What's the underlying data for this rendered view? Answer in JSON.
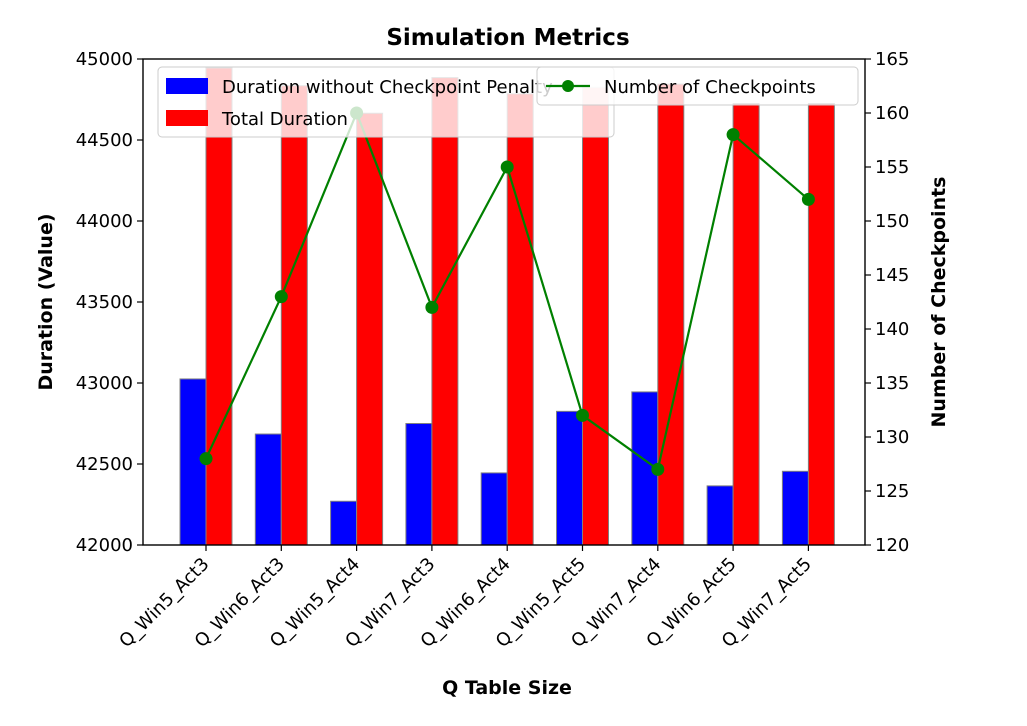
{
  "chart_data": {
    "type": "bar",
    "title": "Simulation Metrics",
    "xlabel": "Q Table Size",
    "ylabel_left": "Duration (Value)",
    "ylabel_right": "Number of Checkpoints",
    "categories": [
      "Q_Win5_Act3",
      "Q_Win6_Act3",
      "Q_Win5_Act4",
      "Q_Win7_Act3",
      "Q_Win6_Act4",
      "Q_Win5_Act5",
      "Q_Win7_Act4",
      "Q_Win6_Act5",
      "Q_Win7_Act5"
    ],
    "series": [
      {
        "name": "Duration without Checkpoint Penalty",
        "axis": "left",
        "kind": "bar",
        "color": "#0000ff",
        "values": [
          43025,
          42685,
          42270,
          42750,
          42445,
          42825,
          42945,
          42365,
          42455
        ]
      },
      {
        "name": "Total Duration",
        "axis": "left",
        "kind": "bar",
        "color": "#ff0000",
        "values": [
          44945,
          44835,
          44665,
          44885,
          44785,
          44825,
          44845,
          44725,
          44725
        ]
      },
      {
        "name": "Number of Checkpoints",
        "axis": "right",
        "kind": "line",
        "color": "#008000",
        "values": [
          128,
          143,
          160,
          142,
          155,
          132,
          127,
          158,
          152
        ]
      }
    ],
    "ylim_left": [
      42000,
      45000
    ],
    "yticks_left": [
      "42000",
      "42500",
      "43000",
      "43500",
      "44000",
      "44500",
      "45000"
    ],
    "ylim_right": [
      120,
      165
    ],
    "yticks_right": [
      "120",
      "125",
      "130",
      "135",
      "140",
      "145",
      "150",
      "155",
      "160",
      "165"
    ],
    "grid": false,
    "legend_left_placement": "upper left",
    "legend_right_placement": "upper right",
    "ylabel_left_color": "#0000ff",
    "ylabel_right_color": "#008000"
  }
}
